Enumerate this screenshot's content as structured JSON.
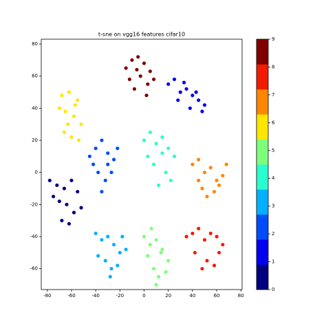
{
  "chart_data": {
    "type": "scatter",
    "title": "t-sne on vgg16 features cifar10",
    "xlim": [
      -85,
      81
    ],
    "xticks": [
      -80,
      -60,
      -40,
      -20,
      0,
      20,
      40,
      60,
      80
    ],
    "ylim": [
      -73,
      83
    ],
    "yticks": [
      -60,
      -40,
      -20,
      0,
      20,
      40,
      60,
      80
    ],
    "colorbar": {
      "lim": [
        0,
        9
      ],
      "ticks": [
        0,
        1,
        2,
        3,
        4,
        5,
        6,
        7,
        8,
        9
      ],
      "colors": [
        "#000080",
        "#0000f1",
        "#004cff",
        "#00b0ff",
        "#29ffce",
        "#7dff7a",
        "#ffe600",
        "#ff8600",
        "#f11c00",
        "#800000"
      ]
    },
    "series": [
      {
        "value": 0,
        "x": [
          -78,
          -72,
          -66,
          -60,
          -55,
          -70,
          -64,
          -58,
          -68,
          -62,
          -52,
          -75
        ],
        "y": [
          -5,
          -8,
          -10,
          -5,
          -12,
          -18,
          -20,
          -25,
          -30,
          -32,
          -22,
          -15
        ]
      },
      {
        "value": 1,
        "x": [
          20,
          25,
          30,
          35,
          40,
          45,
          50,
          28,
          38,
          48,
          33,
          43
        ],
        "y": [
          55,
          58,
          50,
          52,
          48,
          45,
          42,
          45,
          40,
          38,
          56,
          50
        ]
      },
      {
        "value": 2,
        "x": [
          -45,
          -40,
          -35,
          -30,
          -25,
          -38,
          -32,
          -27,
          -42,
          -35,
          -22,
          -30
        ],
        "y": [
          10,
          15,
          20,
          12,
          8,
          0,
          -5,
          0,
          5,
          -12,
          15,
          5
        ]
      },
      {
        "value": 3,
        "x": [
          -40,
          -35,
          -30,
          -25,
          -20,
          -15,
          -32,
          -27,
          -22,
          -38,
          -18,
          -28
        ],
        "y": [
          -38,
          -42,
          -40,
          -45,
          -50,
          -48,
          -55,
          -60,
          -58,
          -52,
          -40,
          -65
        ]
      },
      {
        "value": 4,
        "x": [
          0,
          5,
          10,
          15,
          20,
          25,
          8,
          18,
          12,
          3,
          22,
          15
        ],
        "y": [
          20,
          25,
          18,
          22,
          15,
          10,
          5,
          0,
          -8,
          10,
          -5,
          12
        ]
      },
      {
        "value": 5,
        "x": [
          0,
          5,
          10,
          15,
          20,
          8,
          12,
          3,
          18,
          10,
          14,
          6
        ],
        "y": [
          -40,
          -45,
          -42,
          -48,
          -55,
          -60,
          -65,
          -52,
          -62,
          -70,
          -50,
          -35
        ]
      },
      {
        "value": 6,
        "x": [
          -68,
          -62,
          -55,
          -70,
          -65,
          -58,
          -52,
          -66,
          -60,
          -54,
          -63,
          -57
        ],
        "y": [
          48,
          50,
          45,
          40,
          38,
          35,
          30,
          25,
          22,
          20,
          30,
          42
        ]
      },
      {
        "value": 7,
        "x": [
          40,
          45,
          50,
          55,
          60,
          65,
          48,
          58,
          52,
          62,
          45,
          68
        ],
        "y": [
          5,
          8,
          0,
          3,
          -5,
          -2,
          -10,
          -12,
          -15,
          -8,
          -5,
          5
        ]
      },
      {
        "value": 8,
        "x": [
          35,
          40,
          45,
          50,
          55,
          60,
          65,
          42,
          52,
          62,
          48,
          58
        ],
        "y": [
          -40,
          -38,
          -35,
          -42,
          -38,
          -40,
          -45,
          -50,
          -55,
          -50,
          -60,
          -58
        ]
      },
      {
        "value": 9,
        "x": [
          -15,
          -10,
          -5,
          0,
          5,
          -12,
          -3,
          3,
          -8,
          2,
          -6,
          8
        ],
        "y": [
          65,
          70,
          72,
          68,
          63,
          58,
          60,
          55,
          52,
          48,
          64,
          58
        ]
      }
    ]
  }
}
